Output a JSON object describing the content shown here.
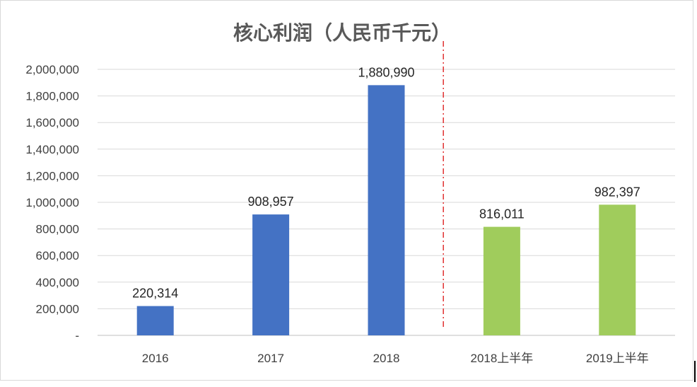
{
  "chart_data": {
    "type": "bar",
    "title": "核心利润（人民币千元）",
    "categories": [
      "2016",
      "2017",
      "2018",
      "2018上半年",
      "2019上半年"
    ],
    "values": [
      220314,
      908957,
      1880990,
      816011,
      982397
    ],
    "data_labels": [
      "220,314",
      "908,957",
      "1,880,990",
      "816,011",
      "982,397"
    ],
    "colors": [
      "#4472C4",
      "#4472C4",
      "#4472C4",
      "#A0CC5C",
      "#A0CC5C"
    ],
    "yticks": [
      "-",
      "200,000",
      "400,000",
      "600,000",
      "800,000",
      "1,000,000",
      "1,200,000",
      "1,400,000",
      "1,600,000",
      "1,800,000",
      "2,000,000"
    ],
    "ylim": [
      0,
      2000000
    ],
    "grid": true,
    "divider": {
      "style": "dash-dot",
      "color": "#E03030",
      "between": [
        "2018",
        "2018上半年"
      ]
    }
  }
}
